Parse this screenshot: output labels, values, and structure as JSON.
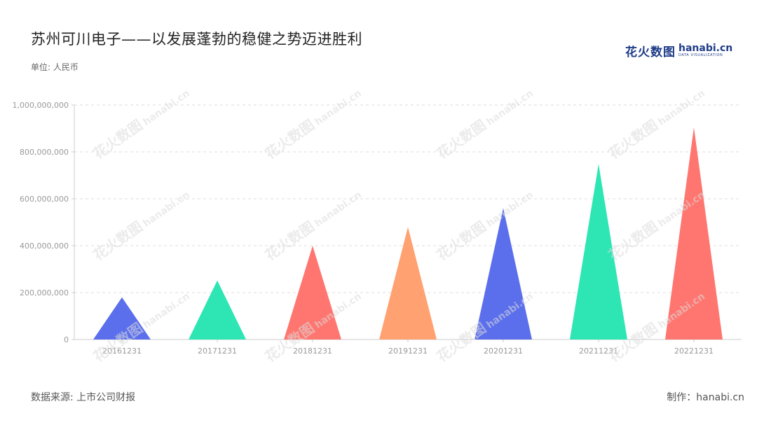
{
  "title": "苏州可川电子——以发展蓬勃的稳健之势迈进胜利",
  "unit_label": "单位: 人民币",
  "logo": {
    "cn": "花火数图",
    "en": "hanabi.cn",
    "sub": "DATA VISUALIZATION"
  },
  "watermark": {
    "cn": "花火数图",
    "en": "hanabi.cn"
  },
  "footer": {
    "source": "数据来源: 上市公司财报",
    "credit": "制作：hanabi.cn"
  },
  "colors": {
    "palette": [
      "#5b6fec",
      "#2de6b3",
      "#ff7670",
      "#ffa170"
    ],
    "grid": "#dddddd",
    "axis": "#cccccc",
    "tick": "#999999"
  },
  "chart_data": {
    "type": "bar",
    "mark_shape": "triangle",
    "categories": [
      "20161231",
      "20171231",
      "20181231",
      "20191231",
      "20201231",
      "20211231",
      "20221231"
    ],
    "values": [
      180000000,
      252000000,
      400000000,
      480000000,
      560000000,
      748000000,
      905000000
    ],
    "bar_colors": [
      "#5b6fec",
      "#2de6b3",
      "#ff7670",
      "#ffa170",
      "#5b6fec",
      "#2de6b3",
      "#ff7670"
    ],
    "y_ticks": [
      "0",
      "200,000,000",
      "400,000,000",
      "600,000,000",
      "800,000,000",
      "1,000,000,000"
    ],
    "ylim": [
      0,
      1000000000
    ],
    "grid": true
  }
}
